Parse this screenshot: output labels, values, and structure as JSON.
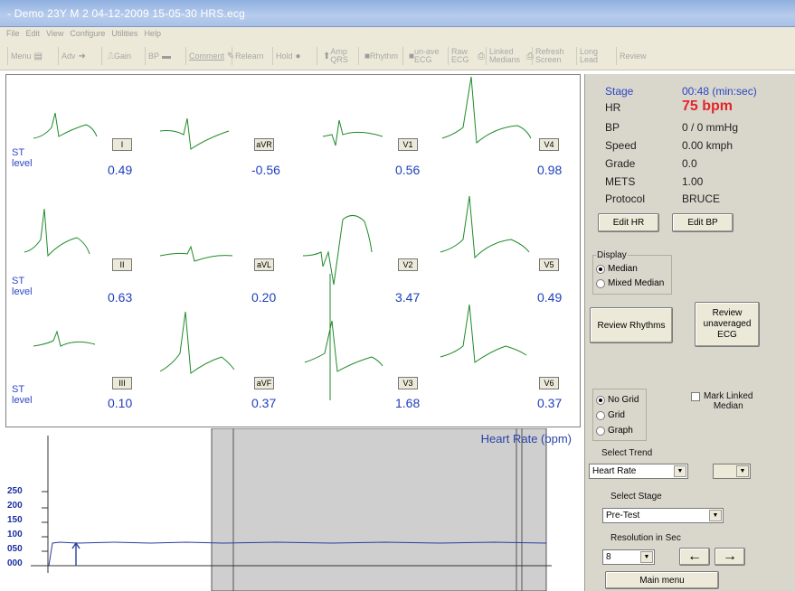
{
  "window": {
    "title": "- Demo 23Y M 2 04-12-2009 15-05-30 HRS.ecg"
  },
  "menu": [
    "File",
    "Edit",
    "View",
    "Configure",
    "Utilities",
    "Help"
  ],
  "toolbar": [
    {
      "label": "Menu",
      "icon": "menu-icon"
    },
    {
      "label": "Adv",
      "icon": "arrow-right-icon"
    },
    {
      "label": "Gain",
      "icon": "gain-icon"
    },
    {
      "label": "BP",
      "icon": "bp-cuff-icon"
    },
    {
      "label": "Comment",
      "icon": "pen-icon"
    },
    {
      "label": "Relearn",
      "icon": ""
    },
    {
      "label": "Hold",
      "icon": "record-dot-icon"
    },
    {
      "label": "Amp QRS",
      "icon": "amp-icon"
    },
    {
      "label": "Rhythm",
      "icon": "rhythm-icon"
    },
    {
      "label": "un-ave ECG",
      "icon": "unaverage-icon"
    },
    {
      "label": "Raw ECG",
      "icon": "printer-icon"
    },
    {
      "label": "Linked Medians",
      "icon": "printer-icon"
    },
    {
      "label": "Refresh Screen",
      "icon": ""
    },
    {
      "label": "Long Lead",
      "icon": ""
    },
    {
      "label": "Review",
      "icon": ""
    }
  ],
  "leads": [
    {
      "name": "I",
      "st": "0.49"
    },
    {
      "name": "aVR",
      "st": "-0.56"
    },
    {
      "name": "V1",
      "st": "0.56"
    },
    {
      "name": "V4",
      "st": "0.98"
    },
    {
      "name": "II",
      "st": "0.63"
    },
    {
      "name": "aVL",
      "st": "0.20"
    },
    {
      "name": "V2",
      "st": "3.47"
    },
    {
      "name": "V5",
      "st": "0.49"
    },
    {
      "name": "III",
      "st": "0.10"
    },
    {
      "name": "aVF",
      "st": "0.37"
    },
    {
      "name": "V3",
      "st": "1.68"
    },
    {
      "name": "V6",
      "st": "0.37"
    }
  ],
  "st_label": {
    "line1": "ST",
    "line2": "level"
  },
  "trend": {
    "title": "Heart Rate (bpm)",
    "yticks": [
      "250",
      "200",
      "150",
      "100",
      "050",
      "000"
    ],
    "trace_color": "#2a3f9e"
  },
  "status": {
    "stage": {
      "label": "Stage",
      "value": "00:48 (min:sec)"
    },
    "hr": {
      "label": "HR",
      "value": "75  bpm"
    },
    "bp": {
      "label": "BP",
      "value": "0 / 0 mmHg"
    },
    "speed": {
      "label": "Speed",
      "value": "0.00 kmph"
    },
    "grade": {
      "label": "Grade",
      "value": "0.0"
    },
    "mets": {
      "label": "METS",
      "value": "1.00"
    },
    "protocol": {
      "label": "Protocol",
      "value": "BRUCE"
    }
  },
  "buttons": {
    "edit_hr": "Edit HR",
    "edit_bp": "Edit BP",
    "review_rhythms": "Review Rhythms",
    "review_unaveraged_l1": "Review",
    "review_unaveraged_l2": "unaveraged",
    "review_unaveraged_l3": "ECG",
    "main_menu": "Main menu"
  },
  "display": {
    "legend": "Display",
    "median": "Median",
    "mixed_median": "Mixed Median",
    "selected": "Median"
  },
  "grid": {
    "no_grid": "No Grid",
    "grid": "Grid",
    "graph": "Graph",
    "selected": "No Grid"
  },
  "mark_linked": {
    "line1": "Mark Linked",
    "line2": "Median"
  },
  "select_trend": {
    "label": "Select Trend",
    "value": "Heart Rate"
  },
  "select_stage": {
    "label": "Select Stage",
    "value": "Pre-Test"
  },
  "resolution": {
    "label": "Resolution in Sec",
    "value": "8"
  },
  "colors": {
    "ecg_trace": "#1f8a2a",
    "st_value": "#1f3fbf",
    "hr_value": "#e2262a",
    "stage_value": "#2b46c4"
  }
}
